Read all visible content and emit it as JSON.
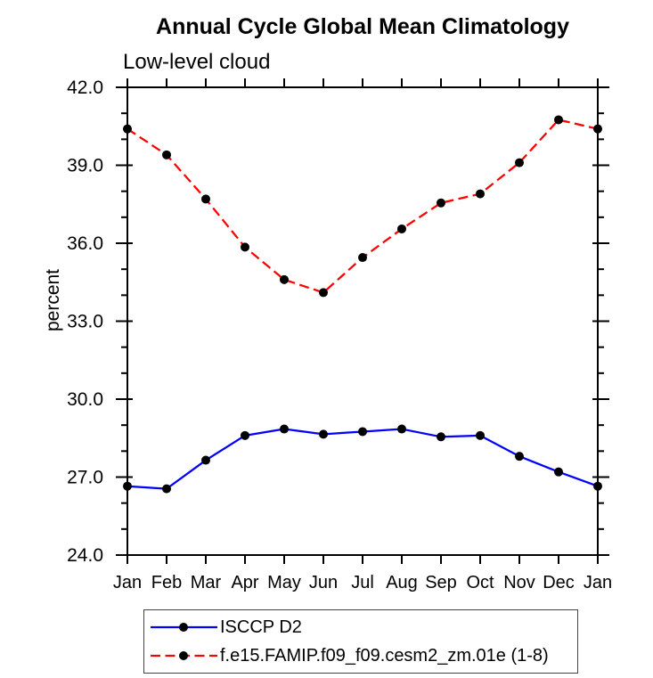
{
  "chart_data": {
    "type": "line",
    "title": "Annual Cycle Global Mean Climatology",
    "subtitle": "Low-level cloud",
    "ylabel": "percent",
    "xlabel": "",
    "ylim": [
      24.0,
      42.0
    ],
    "y_major_ticks": [
      24,
      27,
      30,
      33,
      36,
      39,
      42
    ],
    "y_tick_labels": [
      "24.0",
      "27.0",
      "30.0",
      "33.0",
      "36.0",
      "39.0",
      "42.0"
    ],
    "y_minor_step": 1.0,
    "categories": [
      "Jan",
      "Feb",
      "Mar",
      "Apr",
      "May",
      "Jun",
      "Jul",
      "Aug",
      "Sep",
      "Oct",
      "Nov",
      "Dec",
      "Jan"
    ],
    "grid": false,
    "legend_position": "bottom-left",
    "axis_color": "#000000",
    "marker_color": "#000000",
    "series": [
      {
        "name": "ISCCP D2",
        "color": "#0000ff",
        "line_style": "solid",
        "marker": "filled-circle",
        "values": [
          26.65,
          26.55,
          27.65,
          28.6,
          28.85,
          28.65,
          28.75,
          28.85,
          28.55,
          28.6,
          27.8,
          27.2,
          26.65
        ]
      },
      {
        "name": "f.e15.FAMIP.f09_f09.cesm2_zm.01e (1-8)",
        "color": "#ff0000",
        "line_style": "dashed",
        "marker": "filled-circle",
        "values": [
          40.4,
          39.4,
          37.7,
          35.85,
          34.6,
          34.1,
          35.45,
          36.55,
          37.55,
          37.9,
          39.1,
          40.75,
          40.4
        ]
      }
    ]
  }
}
